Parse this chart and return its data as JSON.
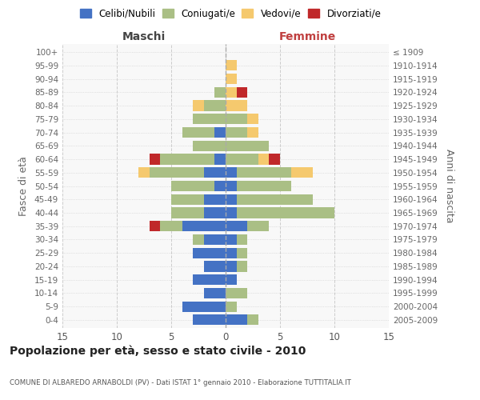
{
  "age_groups": [
    "0-4",
    "5-9",
    "10-14",
    "15-19",
    "20-24",
    "25-29",
    "30-34",
    "35-39",
    "40-44",
    "45-49",
    "50-54",
    "55-59",
    "60-64",
    "65-69",
    "70-74",
    "75-79",
    "80-84",
    "85-89",
    "90-94",
    "95-99",
    "100+"
  ],
  "birth_years": [
    "2005-2009",
    "2000-2004",
    "1995-1999",
    "1990-1994",
    "1985-1989",
    "1980-1984",
    "1975-1979",
    "1970-1974",
    "1965-1969",
    "1960-1964",
    "1955-1959",
    "1950-1954",
    "1945-1949",
    "1940-1944",
    "1935-1939",
    "1930-1934",
    "1925-1929",
    "1920-1924",
    "1915-1919",
    "1910-1914",
    "≤ 1909"
  ],
  "males": {
    "celibi": [
      3,
      4,
      2,
      3,
      2,
      3,
      2,
      4,
      2,
      2,
      1,
      2,
      1,
      0,
      1,
      0,
      0,
      0,
      0,
      0,
      0
    ],
    "coniugati": [
      0,
      0,
      0,
      0,
      0,
      0,
      1,
      2,
      3,
      3,
      4,
      5,
      5,
      3,
      3,
      3,
      2,
      1,
      0,
      0,
      0
    ],
    "vedovi": [
      0,
      0,
      0,
      0,
      0,
      0,
      0,
      0,
      0,
      0,
      0,
      1,
      0,
      0,
      0,
      0,
      1,
      0,
      0,
      0,
      0
    ],
    "divorziati": [
      0,
      0,
      0,
      0,
      0,
      0,
      0,
      1,
      0,
      0,
      0,
      0,
      1,
      0,
      0,
      0,
      0,
      0,
      0,
      0,
      0
    ]
  },
  "females": {
    "nubili": [
      2,
      0,
      0,
      1,
      1,
      1,
      1,
      2,
      1,
      1,
      1,
      1,
      0,
      0,
      0,
      0,
      0,
      0,
      0,
      0,
      0
    ],
    "coniugate": [
      1,
      1,
      2,
      0,
      1,
      1,
      1,
      2,
      9,
      7,
      5,
      5,
      3,
      4,
      2,
      2,
      0,
      0,
      0,
      0,
      0
    ],
    "vedove": [
      0,
      0,
      0,
      0,
      0,
      0,
      0,
      0,
      0,
      0,
      0,
      2,
      1,
      0,
      1,
      1,
      2,
      1,
      1,
      1,
      0
    ],
    "divorziate": [
      0,
      0,
      0,
      0,
      0,
      0,
      0,
      0,
      0,
      0,
      0,
      0,
      1,
      0,
      0,
      0,
      0,
      1,
      0,
      0,
      0
    ]
  },
  "colors": {
    "celibi_nubili": "#4472C4",
    "coniugati": "#AABF85",
    "vedovi": "#F5C96E",
    "divorziati": "#C0282A"
  },
  "xlim": 15,
  "title": "Popolazione per età, sesso e stato civile - 2010",
  "subtitle": "COMUNE DI ALBAREDO ARNABOLDI (PV) - Dati ISTAT 1° gennaio 2010 - Elaborazione TUTTITALIA.IT",
  "ylabel_left": "Fasce di età",
  "ylabel_right": "Anni di nascita",
  "label_maschi": "Maschi",
  "label_femmine": "Femmine",
  "bg_color": "#FFFFFF",
  "plot_bg": "#F8F8F8",
  "grid_color": "#CCCCCC"
}
